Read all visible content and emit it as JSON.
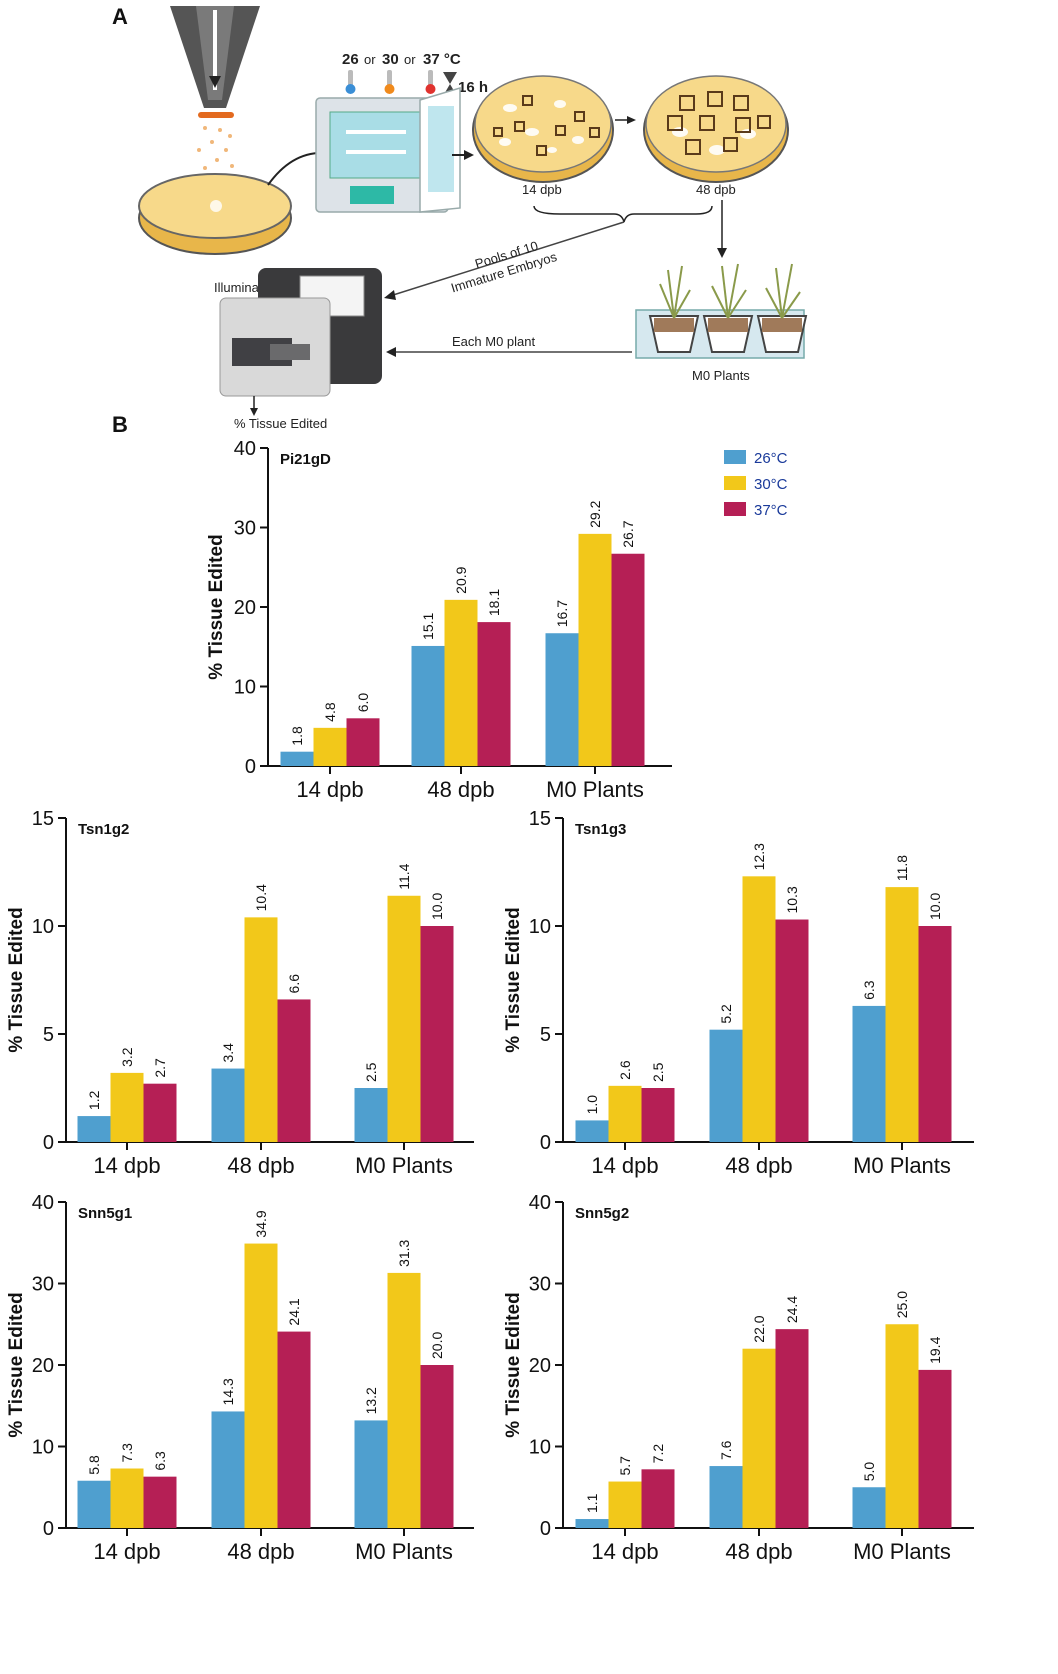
{
  "panels": {
    "a": "A",
    "b": "B"
  },
  "schematic": {
    "temp_26": "26",
    "or_1": "or",
    "temp_30": "30",
    "or_2": "or",
    "temp_37": "37 °C",
    "duration": "16 h",
    "label_14dpb": "14 dpb",
    "label_48dpb": "48 dpb",
    "pools_line1": "Pools of 10",
    "pools_line2": "Immature Embryos",
    "sequencer": "Illumina MiSeq",
    "each_plant": "Each M0 plant",
    "m0_plants": "M0 Plants",
    "tissue_edited": "% Tissue Edited"
  },
  "legend": [
    {
      "label": "26°C",
      "color": "#4f9fcf"
    },
    {
      "label": "30°C",
      "color": "#f2c81a"
    },
    {
      "label": "37°C",
      "color": "#b51f55"
    }
  ],
  "chart_data": [
    {
      "type": "bar",
      "title": "Pi21gD",
      "ylabel": "% Tissue Edited",
      "categories": [
        "14 dpb",
        "48 dpb",
        "M0 Plants"
      ],
      "ylim": [
        0,
        40
      ],
      "yticks": [
        "0",
        "10",
        "20",
        "30",
        "40"
      ],
      "series": [
        {
          "name": "26°C",
          "values": [
            1.8,
            15.1,
            16.7
          ],
          "labels": [
            "1.8",
            "15.1",
            "16.7"
          ]
        },
        {
          "name": "30°C",
          "values": [
            4.8,
            20.9,
            29.2
          ],
          "labels": [
            "4.8",
            "20.9",
            "29.2"
          ]
        },
        {
          "name": "37°C",
          "values": [
            6.0,
            18.1,
            26.7
          ],
          "labels": [
            "6.0",
            "18.1",
            "26.7"
          ]
        }
      ]
    },
    {
      "type": "bar",
      "title": "Tsn1g2",
      "ylabel": "% Tissue Edited",
      "categories": [
        "14 dpb",
        "48 dpb",
        "M0 Plants"
      ],
      "ylim": [
        0,
        15
      ],
      "yticks": [
        "0",
        "5",
        "10",
        "15"
      ],
      "series": [
        {
          "name": "26°C",
          "values": [
            1.2,
            3.4,
            2.5
          ],
          "labels": [
            "1.2",
            "3.4",
            "2.5"
          ]
        },
        {
          "name": "30°C",
          "values": [
            3.2,
            10.4,
            11.4
          ],
          "labels": [
            "3.2",
            "10.4",
            "11.4"
          ]
        },
        {
          "name": "37°C",
          "values": [
            2.7,
            6.6,
            10.0
          ],
          "labels": [
            "2.7",
            "6.6",
            "10.0"
          ]
        }
      ]
    },
    {
      "type": "bar",
      "title": "Tsn1g3",
      "ylabel": "% Tissue Edited",
      "categories": [
        "14 dpb",
        "48 dpb",
        "M0 Plants"
      ],
      "ylim": [
        0,
        15
      ],
      "yticks": [
        "0",
        "5",
        "10",
        "15"
      ],
      "series": [
        {
          "name": "26°C",
          "values": [
            1.0,
            5.2,
            6.3
          ],
          "labels": [
            "1.0",
            "5.2",
            "6.3"
          ]
        },
        {
          "name": "30°C",
          "values": [
            2.6,
            12.3,
            11.8
          ],
          "labels": [
            "2.6",
            "12.3",
            "11.8"
          ]
        },
        {
          "name": "37°C",
          "values": [
            2.5,
            10.3,
            10.0
          ],
          "labels": [
            "2.5",
            "10.3",
            "10.0"
          ]
        }
      ]
    },
    {
      "type": "bar",
      "title": "Snn5g1",
      "ylabel": "% Tissue Edited",
      "categories": [
        "14 dpb",
        "48 dpb",
        "M0 Plants"
      ],
      "ylim": [
        0,
        40
      ],
      "yticks": [
        "0",
        "10",
        "20",
        "30",
        "40"
      ],
      "series": [
        {
          "name": "26°C",
          "values": [
            5.8,
            14.3,
            13.2
          ],
          "labels": [
            "5.8",
            "14.3",
            "13.2"
          ]
        },
        {
          "name": "30°C",
          "values": [
            7.3,
            34.9,
            31.3
          ],
          "labels": [
            "7.3",
            "34.9",
            "31.3"
          ]
        },
        {
          "name": "37°C",
          "values": [
            6.3,
            24.1,
            20.0
          ],
          "labels": [
            "6.3",
            "24.1",
            "20.0"
          ]
        }
      ]
    },
    {
      "type": "bar",
      "title": "Snn5g2",
      "ylabel": "% Tissue Edited",
      "categories": [
        "14 dpb",
        "48 dpb",
        "M0 Plants"
      ],
      "ylim": [
        0,
        40
      ],
      "yticks": [
        "0",
        "10",
        "20",
        "30",
        "40"
      ],
      "series": [
        {
          "name": "26°C",
          "values": [
            1.1,
            7.6,
            5.0
          ],
          "labels": [
            "1.1",
            "7.6",
            "5.0"
          ]
        },
        {
          "name": "30°C",
          "values": [
            5.7,
            22.0,
            25.0
          ],
          "labels": [
            "5.7",
            "22.0",
            "25.0"
          ]
        },
        {
          "name": "37°C",
          "values": [
            7.2,
            24.4,
            19.4
          ],
          "labels": [
            "7.2",
            "24.4",
            "19.4"
          ]
        }
      ]
    }
  ]
}
